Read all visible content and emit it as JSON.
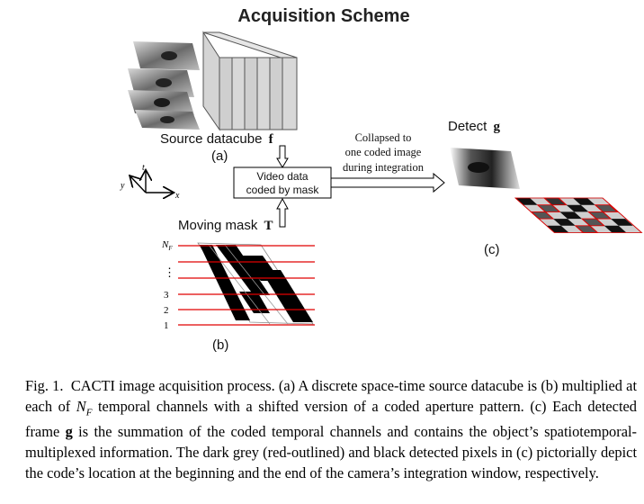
{
  "figure": {
    "title": "Acquisition Scheme",
    "source_label": "Source datacube",
    "source_symbol": "f",
    "label_a": "(a)",
    "label_b": "(b)",
    "label_c": "(c)",
    "detect_label": "Detect",
    "detect_symbol": "g",
    "box_line1": "Video data",
    "box_line2": "coded by mask",
    "collapse_line1": "Collapsed to",
    "collapse_line2": "one coded image",
    "collapse_line3": "during integration",
    "mask_label": "Moving mask",
    "mask_symbol": "T",
    "axis_t": "t",
    "axis_y": "y",
    "axis_x": "x",
    "channel_nf": "N",
    "channel_nf_sub": "F",
    "channel_dots": "⋮",
    "channel_3": "3",
    "channel_2": "2",
    "channel_1": "1"
  },
  "caption": {
    "fig_label": "Fig. 1.",
    "s1": "CACTI image acquisition process. (a) A discrete space-time source datacube is (b) multiplied at each of ",
    "nf_var": "N",
    "nf_sub": "F",
    "s2": " temporal channels with a shifted version of a coded aperture pattern. (c) Each detected frame ",
    "g_sym": "g",
    "s3": " is the summation of the coded temporal channels and contains the object’s spatiotemporal-multiplexed information. The dark grey (red-outlined) and black detected pixels in (c) pictorially depict the code’s location at the beginning and the end of the camera’s integration window, respectively."
  }
}
